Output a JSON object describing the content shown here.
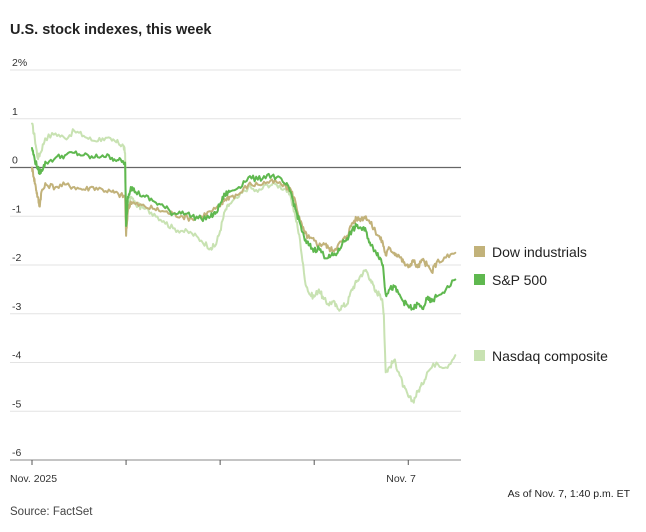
{
  "chart_data": {
    "type": "line",
    "title": "U.S. stock indexes, this week",
    "xlabel": "",
    "ylabel": "",
    "ylim": [
      -6,
      2
    ],
    "y_ticks": [
      {
        "value": 2,
        "label": "2%"
      },
      {
        "value": 1,
        "label": "1"
      },
      {
        "value": 0,
        "label": "0"
      },
      {
        "value": -1,
        "label": "-1"
      },
      {
        "value": -2,
        "label": "-2"
      },
      {
        "value": -3,
        "label": "-3"
      },
      {
        "value": -4,
        "label": "-4"
      },
      {
        "value": -5,
        "label": "-5"
      },
      {
        "value": -6,
        "label": "-6"
      }
    ],
    "xlim": [
      0,
      4.55
    ],
    "x_ticks": [
      {
        "value": 0,
        "label": "Nov. 2025"
      },
      {
        "value": 1,
        "label": ""
      },
      {
        "value": 2,
        "label": ""
      },
      {
        "value": 3,
        "label": ""
      },
      {
        "value": 4,
        "label": "Nov. 7"
      }
    ],
    "grid": true,
    "legend_position": "right",
    "series": [
      {
        "name": "Nasdaq composite",
        "color": "#c8e2b2",
        "points": [
          [
            0.0,
            0.9
          ],
          [
            0.03,
            0.6
          ],
          [
            0.06,
            0.2
          ],
          [
            0.09,
            0.3
          ],
          [
            0.14,
            0.6
          ],
          [
            0.25,
            0.7
          ],
          [
            0.35,
            0.6
          ],
          [
            0.45,
            0.75
          ],
          [
            0.55,
            0.65
          ],
          [
            0.65,
            0.55
          ],
          [
            0.75,
            0.6
          ],
          [
            0.85,
            0.55
          ],
          [
            0.92,
            0.5
          ],
          [
            0.97,
            0.45
          ],
          [
            0.99,
            0.3
          ],
          [
            1.0,
            -1.2
          ],
          [
            1.02,
            -0.9
          ],
          [
            1.05,
            -0.6
          ],
          [
            1.1,
            -0.75
          ],
          [
            1.2,
            -0.85
          ],
          [
            1.3,
            -0.95
          ],
          [
            1.4,
            -1.1
          ],
          [
            1.5,
            -1.25
          ],
          [
            1.6,
            -1.3
          ],
          [
            1.7,
            -1.35
          ],
          [
            1.8,
            -1.5
          ],
          [
            1.9,
            -1.65
          ],
          [
            1.95,
            -1.6
          ],
          [
            2.0,
            -1.3
          ],
          [
            2.05,
            -0.9
          ],
          [
            2.1,
            -0.75
          ],
          [
            2.2,
            -0.6
          ],
          [
            2.3,
            -0.4
          ],
          [
            2.4,
            -0.5
          ],
          [
            2.5,
            -0.35
          ],
          [
            2.6,
            -0.35
          ],
          [
            2.7,
            -0.45
          ],
          [
            2.75,
            -0.6
          ],
          [
            2.8,
            -1.0
          ],
          [
            2.85,
            -1.5
          ],
          [
            2.9,
            -2.3
          ],
          [
            2.95,
            -2.6
          ],
          [
            3.0,
            -2.65
          ],
          [
            3.05,
            -2.5
          ],
          [
            3.1,
            -2.7
          ],
          [
            3.15,
            -2.8
          ],
          [
            3.2,
            -2.75
          ],
          [
            3.25,
            -2.9
          ],
          [
            3.3,
            -2.85
          ],
          [
            3.35,
            -2.8
          ],
          [
            3.4,
            -2.5
          ],
          [
            3.45,
            -2.35
          ],
          [
            3.5,
            -2.2
          ],
          [
            3.55,
            -2.1
          ],
          [
            3.6,
            -2.3
          ],
          [
            3.65,
            -2.55
          ],
          [
            3.7,
            -2.6
          ],
          [
            3.72,
            -2.7
          ],
          [
            3.74,
            -3.0
          ],
          [
            3.76,
            -4.2
          ],
          [
            3.8,
            -4.1
          ],
          [
            3.85,
            -3.95
          ],
          [
            3.9,
            -4.2
          ],
          [
            3.95,
            -4.5
          ],
          [
            4.0,
            -4.7
          ],
          [
            4.05,
            -4.8
          ],
          [
            4.1,
            -4.6
          ],
          [
            4.15,
            -4.45
          ],
          [
            4.2,
            -4.2
          ],
          [
            4.3,
            -4.0
          ],
          [
            4.4,
            -4.1
          ],
          [
            4.5,
            -3.85
          ]
        ]
      },
      {
        "name": "Dow industrials",
        "color": "#c2b27a",
        "points": [
          [
            0.0,
            0.0
          ],
          [
            0.02,
            -0.2
          ],
          [
            0.04,
            -0.4
          ],
          [
            0.06,
            -0.6
          ],
          [
            0.08,
            -0.8
          ],
          [
            0.1,
            -0.5
          ],
          [
            0.15,
            -0.35
          ],
          [
            0.25,
            -0.4
          ],
          [
            0.35,
            -0.35
          ],
          [
            0.45,
            -0.4
          ],
          [
            0.55,
            -0.45
          ],
          [
            0.65,
            -0.4
          ],
          [
            0.75,
            -0.45
          ],
          [
            0.85,
            -0.5
          ],
          [
            0.92,
            -0.55
          ],
          [
            0.99,
            -0.6
          ],
          [
            1.0,
            -1.4
          ],
          [
            1.02,
            -0.85
          ],
          [
            1.05,
            -0.7
          ],
          [
            1.1,
            -0.75
          ],
          [
            1.2,
            -0.8
          ],
          [
            1.3,
            -0.85
          ],
          [
            1.4,
            -0.9
          ],
          [
            1.5,
            -0.95
          ],
          [
            1.6,
            -1.0
          ],
          [
            1.7,
            -1.05
          ],
          [
            1.8,
            -1.0
          ],
          [
            1.9,
            -0.9
          ],
          [
            2.0,
            -0.8
          ],
          [
            2.05,
            -0.65
          ],
          [
            2.1,
            -0.6
          ],
          [
            2.2,
            -0.55
          ],
          [
            2.3,
            -0.35
          ],
          [
            2.4,
            -0.35
          ],
          [
            2.5,
            -0.3
          ],
          [
            2.6,
            -0.3
          ],
          [
            2.7,
            -0.4
          ],
          [
            2.75,
            -0.45
          ],
          [
            2.8,
            -0.7
          ],
          [
            2.85,
            -1.1
          ],
          [
            2.9,
            -1.35
          ],
          [
            2.95,
            -1.45
          ],
          [
            3.0,
            -1.5
          ],
          [
            3.05,
            -1.6
          ],
          [
            3.1,
            -1.55
          ],
          [
            3.15,
            -1.65
          ],
          [
            3.2,
            -1.7
          ],
          [
            3.25,
            -1.6
          ],
          [
            3.3,
            -1.5
          ],
          [
            3.35,
            -1.4
          ],
          [
            3.4,
            -1.15
          ],
          [
            3.45,
            -1.05
          ],
          [
            3.5,
            -1.05
          ],
          [
            3.55,
            -1.0
          ],
          [
            3.6,
            -1.15
          ],
          [
            3.65,
            -1.3
          ],
          [
            3.7,
            -1.45
          ],
          [
            3.73,
            -1.55
          ],
          [
            3.76,
            -1.8
          ],
          [
            3.8,
            -1.65
          ],
          [
            3.85,
            -1.75
          ],
          [
            3.9,
            -1.8
          ],
          [
            3.95,
            -1.95
          ],
          [
            4.0,
            -2.05
          ],
          [
            4.05,
            -1.9
          ],
          [
            4.1,
            -2.05
          ],
          [
            4.15,
            -1.9
          ],
          [
            4.2,
            -2.0
          ],
          [
            4.25,
            -2.15
          ],
          [
            4.3,
            -1.95
          ],
          [
            4.4,
            -1.85
          ],
          [
            4.5,
            -1.75
          ]
        ]
      },
      {
        "name": "S&P 500",
        "color": "#5fb84f",
        "points": [
          [
            0.0,
            0.4
          ],
          [
            0.03,
            0.15
          ],
          [
            0.06,
            0.0
          ],
          [
            0.08,
            -0.1
          ],
          [
            0.1,
            -0.05
          ],
          [
            0.15,
            0.1
          ],
          [
            0.25,
            0.2
          ],
          [
            0.35,
            0.25
          ],
          [
            0.45,
            0.3
          ],
          [
            0.55,
            0.25
          ],
          [
            0.65,
            0.2
          ],
          [
            0.75,
            0.25
          ],
          [
            0.85,
            0.2
          ],
          [
            0.92,
            0.15
          ],
          [
            0.99,
            0.1
          ],
          [
            1.0,
            -1.2
          ],
          [
            1.02,
            -0.6
          ],
          [
            1.05,
            -0.4
          ],
          [
            1.1,
            -0.5
          ],
          [
            1.2,
            -0.6
          ],
          [
            1.3,
            -0.7
          ],
          [
            1.4,
            -0.8
          ],
          [
            1.5,
            -0.95
          ],
          [
            1.6,
            -0.9
          ],
          [
            1.7,
            -1.0
          ],
          [
            1.8,
            -1.05
          ],
          [
            1.9,
            -1.0
          ],
          [
            1.95,
            -0.95
          ],
          [
            2.0,
            -0.75
          ],
          [
            2.05,
            -0.55
          ],
          [
            2.1,
            -0.5
          ],
          [
            2.2,
            -0.4
          ],
          [
            2.3,
            -0.2
          ],
          [
            2.4,
            -0.25
          ],
          [
            2.5,
            -0.15
          ],
          [
            2.6,
            -0.2
          ],
          [
            2.7,
            -0.35
          ],
          [
            2.75,
            -0.5
          ],
          [
            2.8,
            -0.85
          ],
          [
            2.85,
            -1.15
          ],
          [
            2.9,
            -1.5
          ],
          [
            2.95,
            -1.6
          ],
          [
            3.0,
            -1.7
          ],
          [
            3.05,
            -1.65
          ],
          [
            3.1,
            -1.8
          ],
          [
            3.15,
            -1.85
          ],
          [
            3.2,
            -1.8
          ],
          [
            3.25,
            -1.75
          ],
          [
            3.3,
            -1.55
          ],
          [
            3.35,
            -1.45
          ],
          [
            3.4,
            -1.3
          ],
          [
            3.45,
            -1.2
          ],
          [
            3.5,
            -1.25
          ],
          [
            3.55,
            -1.3
          ],
          [
            3.6,
            -1.6
          ],
          [
            3.65,
            -1.7
          ],
          [
            3.7,
            -1.85
          ],
          [
            3.73,
            -2.0
          ],
          [
            3.76,
            -2.6
          ],
          [
            3.8,
            -2.5
          ],
          [
            3.85,
            -2.45
          ],
          [
            3.9,
            -2.6
          ],
          [
            3.95,
            -2.75
          ],
          [
            4.0,
            -2.85
          ],
          [
            4.05,
            -2.9
          ],
          [
            4.1,
            -2.8
          ],
          [
            4.15,
            -2.9
          ],
          [
            4.2,
            -2.7
          ],
          [
            4.25,
            -2.75
          ],
          [
            4.3,
            -2.65
          ],
          [
            4.4,
            -2.5
          ],
          [
            4.5,
            -2.3
          ]
        ]
      }
    ],
    "legend": [
      {
        "label": "Dow industrials",
        "color": "#c2b27a"
      },
      {
        "label": "S&P 500",
        "color": "#5fb84f"
      },
      {
        "label": "Nasdaq composite",
        "color": "#c8e2b2"
      }
    ]
  },
  "footer": {
    "as_of": "As of Nov. 7, 1:40 p.m. ET",
    "source": "Source: FactSet"
  }
}
